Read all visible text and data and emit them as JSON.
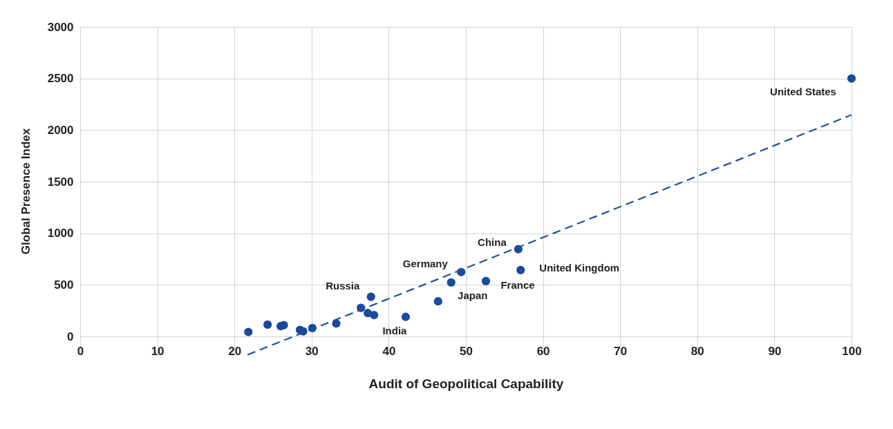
{
  "chart_data": {
    "type": "scatter",
    "xlabel": "Audit of Geopolitical Capability",
    "ylabel": "Global Presence Index",
    "xlim": [
      0,
      100
    ],
    "xticks": [
      0,
      10,
      20,
      30,
      40,
      50,
      60,
      70,
      80,
      90,
      100
    ],
    "ylim": [
      -180,
      3000
    ],
    "yticks": [
      0,
      500,
      1000,
      1500,
      2000,
      2500,
      3000
    ],
    "grid": true,
    "series": [
      {
        "type": "scatter",
        "marker": "circle",
        "color": "#1a4a9c",
        "x": [
          21.8,
          24.3,
          26.0,
          26.4,
          28.5,
          28.9,
          30.1,
          33.2,
          36.4,
          37.3,
          38.1,
          37.7,
          42.2,
          46.4,
          48.1,
          49.4,
          52.6,
          56.8,
          57.1,
          100
        ],
        "values": [
          44,
          115,
          100,
          110,
          63,
          50,
          82,
          126,
          278,
          227,
          208,
          385,
          190,
          341,
          524,
          625,
          537,
          846,
          644,
          2500
        ]
      },
      {
        "type": "line",
        "line_style": "dashed",
        "color": "#1f4fa0",
        "x": [
          21.7,
          100
        ],
        "values": [
          -177,
          2148
        ]
      }
    ],
    "annotations": [
      {
        "text": "United States",
        "x": 100,
        "y": 2500
      },
      {
        "text": "China",
        "x": 56.8,
        "y": 846
      },
      {
        "text": "Germany",
        "x": 49.4,
        "y": 625
      },
      {
        "text": "United Kingdom",
        "x": 57.1,
        "y": 644
      },
      {
        "text": "Russia",
        "x": 37.7,
        "y": 385
      },
      {
        "text": "France",
        "x": 52.6,
        "y": 537
      },
      {
        "text": "Japan",
        "x": 48.1,
        "y": 524
      },
      {
        "text": "India",
        "x": 42.2,
        "y": 190
      }
    ]
  }
}
